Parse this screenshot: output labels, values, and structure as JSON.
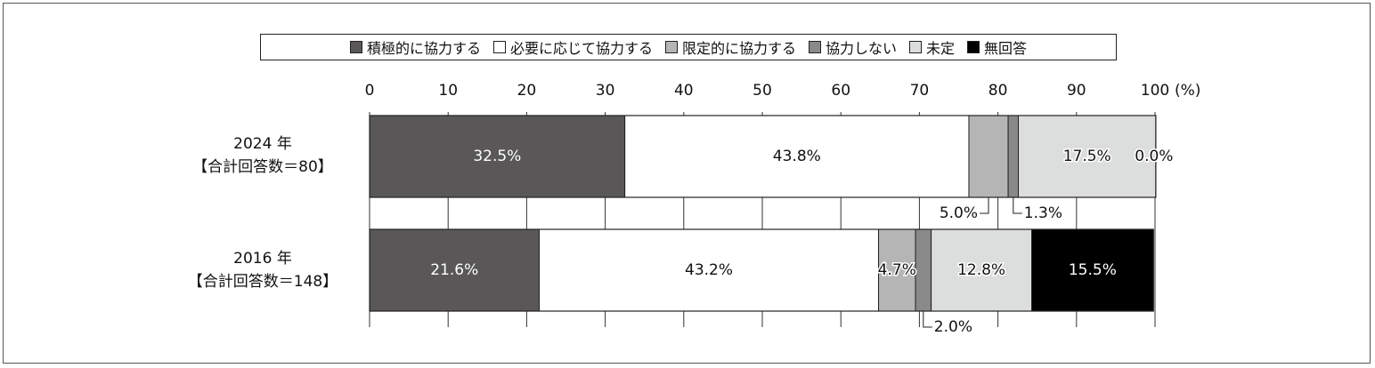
{
  "chart_data": {
    "type": "bar",
    "orientation": "horizontal",
    "stacked": true,
    "unit_label": "(%)",
    "xlim": [
      0,
      100
    ],
    "ticks": [
      0,
      10,
      20,
      30,
      40,
      50,
      60,
      70,
      80,
      90,
      100
    ],
    "legend_position": "top",
    "series": [
      {
        "name": "積極的に協力する",
        "color": "#595757"
      },
      {
        "name": "必要に応じて協力する",
        "color": "#ffffff"
      },
      {
        "name": "限定的に協力する",
        "color": "#b5b5b6"
      },
      {
        "name": "協力しない",
        "color": "#898989"
      },
      {
        "name": "未定",
        "color": "#dcdddd"
      },
      {
        "name": "無回答",
        "color": "#000000"
      }
    ],
    "categories": [
      {
        "year": "2024 年",
        "n": "【合計回答数＝80】",
        "values": [
          32.5,
          43.8,
          5.0,
          1.3,
          17.5,
          0.0
        ],
        "labels": [
          "32.5%",
          "43.8%",
          "5.0%",
          "1.3%",
          "17.5%",
          "0.0%"
        ]
      },
      {
        "year": "2016 年",
        "n": "【合計回答数＝148】",
        "values": [
          21.6,
          43.2,
          4.7,
          2.0,
          12.8,
          15.5
        ],
        "labels": [
          "21.6%",
          "43.2%",
          "4.7%",
          "2.0%",
          "12.8%",
          "15.5%"
        ]
      }
    ]
  }
}
